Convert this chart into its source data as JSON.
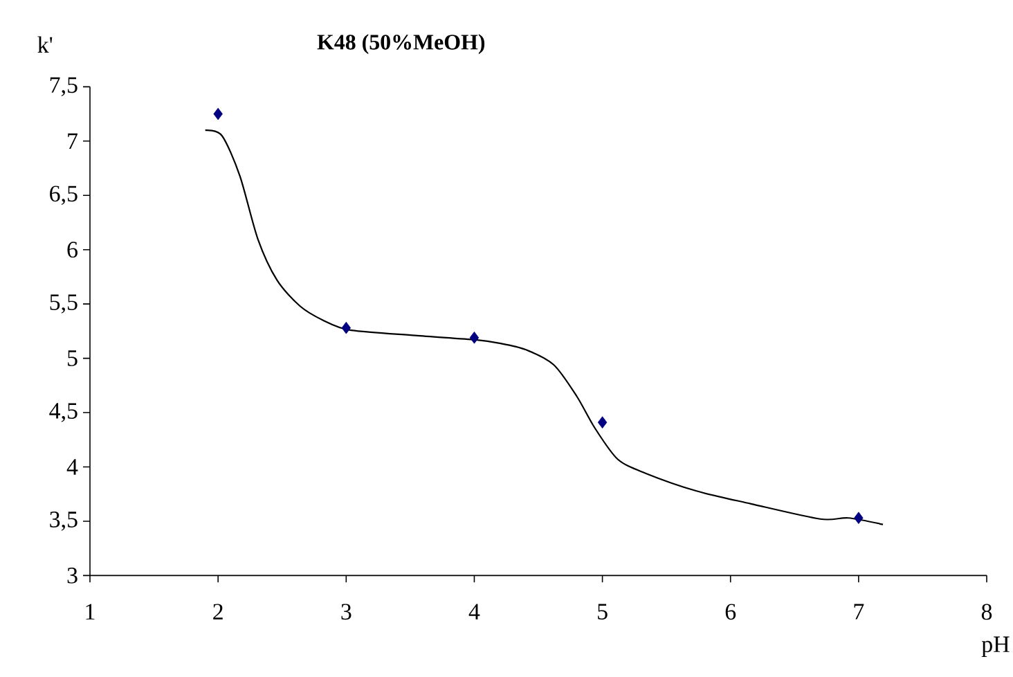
{
  "chart_data": {
    "type": "scatter",
    "title": "**K48 (50%MeOH)**",
    "xlabel": "pH",
    "ylabel": "k'",
    "xlim": [
      1,
      8
    ],
    "xticks": [
      1,
      2,
      3,
      4,
      5,
      6,
      7,
      8
    ],
    "ylim": [
      3,
      7.5
    ],
    "yticks": [
      3,
      {
        "value": 3.5,
        "label": "3,5"
      },
      4,
      {
        "value": 4.5,
        "label": "4,5"
      },
      5,
      {
        "value": 5.5,
        "label": "5,5"
      },
      6,
      {
        "value": 6.5,
        "label": "6,5"
      },
      7,
      {
        "value": 7.5,
        "label": "7,5"
      }
    ],
    "series": [
      {
        "color": "#000080",
        "marker": "diamond",
        "x": [
          2,
          3,
          4,
          5,
          7
        ],
        "values": [
          7.25,
          5.28,
          5.19,
          4.41,
          3.53
        ]
      },
      {
        "type": "line",
        "color": "#000000",
        "marker": "none",
        "line_style": "solid",
        "x": [
          1.9,
          2.03,
          2.17,
          2.31,
          2.46,
          2.64,
          2.82,
          3.03,
          3.54,
          4.01,
          4.19,
          4.4,
          4.62,
          4.8,
          4.94,
          5.12,
          5.34,
          5.73,
          6.16,
          6.7,
          6.92,
          7.19
        ],
        "values": [
          7.1,
          7.05,
          6.68,
          6.1,
          5.72,
          5.48,
          5.35,
          5.26,
          5.21,
          5.17,
          5.14,
          5.08,
          4.94,
          4.65,
          4.36,
          4.07,
          3.94,
          3.78,
          3.66,
          3.52,
          3.53,
          3.47
        ]
      }
    ]
  }
}
